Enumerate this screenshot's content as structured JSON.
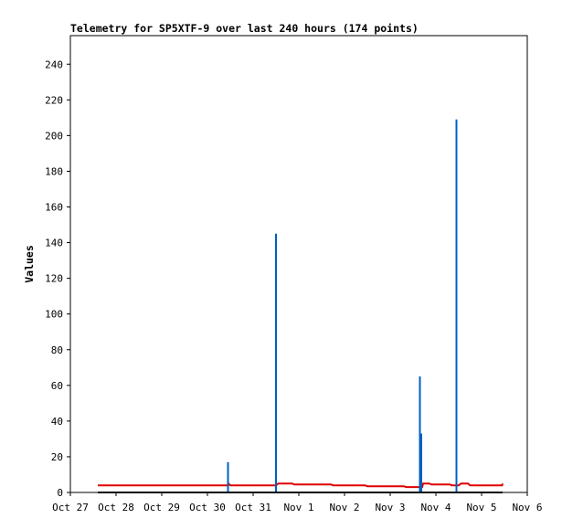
{
  "chart_data": {
    "type": "line",
    "title": "Telemetry for SP5XTF-9 over last 240 hours (174 points)",
    "ylabel": "Values",
    "xlabel": "",
    "xlim": [
      0,
      10
    ],
    "ylim": [
      0,
      256
    ],
    "x_ticks": [
      {
        "x": 0,
        "label": "Oct 27"
      },
      {
        "x": 1,
        "label": "Oct 28"
      },
      {
        "x": 2,
        "label": "Oct 29"
      },
      {
        "x": 3,
        "label": "Oct 30"
      },
      {
        "x": 4,
        "label": "Oct 31"
      },
      {
        "x": 5,
        "label": "Nov 1"
      },
      {
        "x": 6,
        "label": "Nov 2"
      },
      {
        "x": 7,
        "label": "Nov 3"
      },
      {
        "x": 8,
        "label": "Nov 4"
      },
      {
        "x": 9,
        "label": "Nov 5"
      },
      {
        "x": 10,
        "label": "Nov 6"
      }
    ],
    "y_ticks": [
      0,
      20,
      40,
      60,
      80,
      100,
      120,
      140,
      160,
      180,
      200,
      220,
      240
    ],
    "grid": false,
    "series": [
      {
        "color": "#e00000",
        "style": "line",
        "points": [
          [
            0.6,
            4
          ],
          [
            3.45,
            4
          ],
          [
            3.46,
            5
          ],
          [
            3.5,
            4
          ],
          [
            4.5,
            4
          ],
          [
            4.55,
            5
          ],
          [
            4.85,
            5
          ],
          [
            4.9,
            4.5
          ],
          [
            5.7,
            4.5
          ],
          [
            5.75,
            4
          ],
          [
            6.45,
            4
          ],
          [
            6.5,
            3.5
          ],
          [
            7.3,
            3.5
          ],
          [
            7.35,
            3
          ],
          [
            7.7,
            3
          ],
          [
            7.72,
            5
          ],
          [
            7.85,
            5
          ],
          [
            7.9,
            4.5
          ],
          [
            8.3,
            4.5
          ],
          [
            8.35,
            4
          ],
          [
            8.5,
            4
          ],
          [
            8.55,
            5
          ],
          [
            8.7,
            5
          ],
          [
            8.75,
            4
          ],
          [
            9.45,
            4
          ],
          [
            9.46,
            5
          ]
        ]
      },
      {
        "color": "#0060c0",
        "style": "spikes",
        "points": [
          [
            3.45,
            17
          ],
          [
            4.5,
            145
          ],
          [
            7.65,
            65
          ],
          [
            7.68,
            33
          ],
          [
            8.45,
            209
          ]
        ]
      },
      {
        "color": "#000000",
        "style": "line",
        "points": [
          [
            0.6,
            0
          ],
          [
            9.46,
            0
          ]
        ]
      }
    ]
  }
}
